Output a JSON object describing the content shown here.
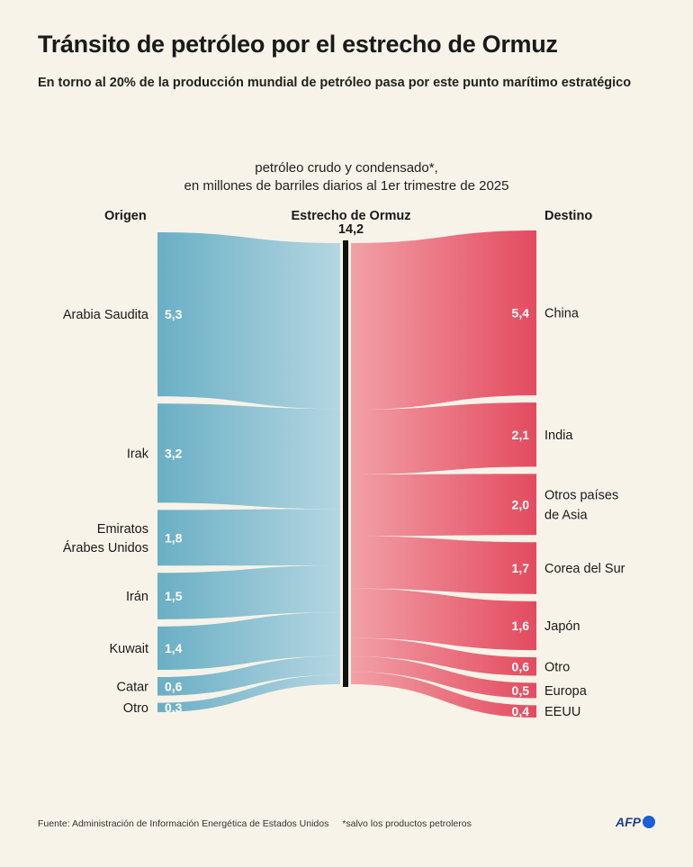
{
  "title": "Tránsito de petróleo por el estrecho de Ormuz",
  "subtitle": "En torno al 20% de la producción mundial de petróleo pasa por este punto marítimo estratégico",
  "caption_line1": "petróleo crudo y condensado*,",
  "caption_line2": "en millones de barriles diarios al 1er trimestre de 2025",
  "headers": {
    "origin": "Origen",
    "center": "Estrecho de Ormuz",
    "destination": "Destino"
  },
  "footer": {
    "source": "Fuente: Administración de Información Energética de Estados Unidos",
    "note": "*salvo los productos petroleros"
  },
  "logo": "AFP",
  "colors": {
    "origin_dark": "#6aafc5",
    "origin_light": "#b4d6e1",
    "dest_light": "#f2a0a7",
    "dest_dark": "#e34b5f",
    "strait": "#111111"
  },
  "chart_data": {
    "type": "sankey",
    "title": "Tránsito de petróleo por el estrecho de Ormuz",
    "unit": "millones de barriles diarios",
    "center": {
      "label": "Estrecho de Ormuz",
      "value_label": "14,2",
      "value": 14.2
    },
    "origins": [
      {
        "label": "Arabia Saudita",
        "value": 5.3,
        "value_label": "5,3"
      },
      {
        "label": "Irak",
        "value": 3.2,
        "value_label": "3,2"
      },
      {
        "label": "Emiratos Árabes Unidos",
        "label_lines": [
          "Emiratos",
          "Árabes Unidos"
        ],
        "value": 1.8,
        "value_label": "1,8"
      },
      {
        "label": "Irán",
        "value": 1.5,
        "value_label": "1,5"
      },
      {
        "label": "Kuwait",
        "value": 1.4,
        "value_label": "1,4"
      },
      {
        "label": "Catar",
        "value": 0.6,
        "value_label": "0,6"
      },
      {
        "label": "Otro",
        "value": 0.3,
        "value_label": "0,3"
      }
    ],
    "destinations": [
      {
        "label": "China",
        "value": 5.4,
        "value_label": "5,4"
      },
      {
        "label": "India",
        "value": 2.1,
        "value_label": "2,1"
      },
      {
        "label": "Otros países de Asia",
        "label_lines": [
          "Otros países",
          "de Asia"
        ],
        "value": 2.0,
        "value_label": "2,0"
      },
      {
        "label": "Corea del Sur",
        "value": 1.7,
        "value_label": "1,7"
      },
      {
        "label": "Japón",
        "value": 1.6,
        "value_label": "1,6"
      },
      {
        "label": "Otro",
        "value": 0.6,
        "value_label": "0,6"
      },
      {
        "label": "Europa",
        "value": 0.5,
        "value_label": "0,5"
      },
      {
        "label": "EEUU",
        "value": 0.4,
        "value_label": "0,4"
      }
    ]
  }
}
